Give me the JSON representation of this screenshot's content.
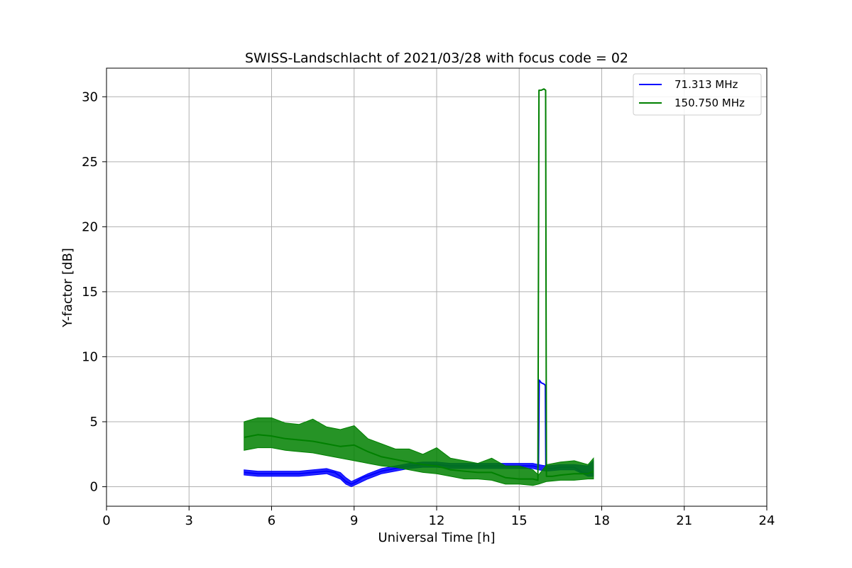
{
  "chart_data": {
    "type": "line",
    "title": "SWISS-Landschlacht of 2021/03/28 with focus code = 02",
    "xlabel": "Universal Time [h]",
    "ylabel": "Y-factor [dB]",
    "xlim": [
      0,
      24
    ],
    "ylim": [
      -1.5,
      32.2
    ],
    "xticks": [
      0,
      3,
      6,
      9,
      12,
      15,
      18,
      21,
      24
    ],
    "xtick_labels": [
      "0",
      "3",
      "6",
      "9",
      "12",
      "15",
      "18",
      "21",
      "24"
    ],
    "yticks": [
      0,
      5,
      10,
      15,
      20,
      25,
      30
    ],
    "ytick_labels": [
      "0",
      "5",
      "10",
      "15",
      "20",
      "25",
      "30"
    ],
    "grid": true,
    "legend_position": "top-right",
    "series": [
      {
        "name": "71.313 MHz",
        "color": "#0000ff",
        "points": [
          [
            5.0,
            1.1
          ],
          [
            5.5,
            1.0
          ],
          [
            6.0,
            1.0
          ],
          [
            6.5,
            1.0
          ],
          [
            7.0,
            1.0
          ],
          [
            7.5,
            1.1
          ],
          [
            8.0,
            1.2
          ],
          [
            8.3,
            1.1
          ],
          [
            8.5,
            0.8
          ],
          [
            8.7,
            0.4
          ],
          [
            8.9,
            0.2
          ],
          [
            9.1,
            0.4
          ],
          [
            9.3,
            0.7
          ],
          [
            9.6,
            0.9
          ],
          [
            10.0,
            1.2
          ],
          [
            10.5,
            1.4
          ],
          [
            11.0,
            1.6
          ],
          [
            11.5,
            1.7
          ],
          [
            12.0,
            1.7
          ],
          [
            12.5,
            1.6
          ],
          [
            13.0,
            1.6
          ],
          [
            13.5,
            1.6
          ],
          [
            14.0,
            1.6
          ],
          [
            14.5,
            1.6
          ],
          [
            15.0,
            1.6
          ],
          [
            15.5,
            1.6
          ],
          [
            15.7,
            1.5
          ],
          [
            15.73,
            8.2
          ],
          [
            15.8,
            8.0
          ],
          [
            15.9,
            7.9
          ],
          [
            15.95,
            7.8
          ],
          [
            15.97,
            1.4
          ],
          [
            16.2,
            1.4
          ],
          [
            16.5,
            1.5
          ],
          [
            17.0,
            1.5
          ],
          [
            17.3,
            1.1
          ],
          [
            17.7,
            1.0
          ]
        ],
        "envelope": {
          "x": [
            5.0,
            5.5,
            6.0,
            6.5,
            7.0,
            7.5,
            8.0,
            8.5,
            8.7,
            8.9,
            9.1,
            9.5,
            10.0,
            10.5,
            11.0,
            11.5,
            12.0,
            12.5,
            13.0,
            13.5,
            14.0,
            14.5,
            15.0,
            15.5,
            15.7,
            16.0,
            16.5,
            17.0,
            17.5,
            17.7
          ],
          "upper": [
            1.3,
            1.2,
            1.2,
            1.2,
            1.2,
            1.3,
            1.4,
            1.1,
            0.7,
            0.4,
            0.6,
            1.0,
            1.4,
            1.6,
            1.8,
            1.9,
            1.9,
            1.8,
            1.8,
            1.8,
            1.8,
            1.8,
            1.8,
            1.8,
            1.7,
            1.6,
            1.7,
            1.7,
            1.6,
            2.0
          ],
          "lower": [
            0.9,
            0.8,
            0.8,
            0.8,
            0.8,
            0.9,
            1.0,
            0.6,
            0.2,
            0.0,
            0.2,
            0.6,
            1.0,
            1.2,
            1.4,
            1.5,
            1.5,
            1.4,
            1.4,
            1.4,
            1.4,
            1.4,
            1.4,
            1.4,
            1.3,
            1.2,
            1.3,
            1.3,
            0.8,
            0.8
          ]
        }
      },
      {
        "name": "150.750 MHz",
        "color": "#008000",
        "points": [
          [
            5.0,
            3.8
          ],
          [
            5.5,
            4.0
          ],
          [
            6.0,
            3.9
          ],
          [
            6.5,
            3.7
          ],
          [
            7.0,
            3.6
          ],
          [
            7.5,
            3.5
          ],
          [
            8.0,
            3.3
          ],
          [
            8.5,
            3.1
          ],
          [
            9.0,
            3.2
          ],
          [
            9.5,
            2.7
          ],
          [
            10.0,
            2.3
          ],
          [
            10.5,
            2.1
          ],
          [
            11.0,
            1.9
          ],
          [
            11.5,
            1.7
          ],
          [
            12.0,
            1.6
          ],
          [
            12.5,
            1.3
          ],
          [
            13.0,
            1.2
          ],
          [
            13.5,
            1.1
          ],
          [
            14.0,
            1.1
          ],
          [
            14.5,
            0.7
          ],
          [
            15.0,
            0.6
          ],
          [
            15.5,
            0.6
          ],
          [
            15.68,
            0.5
          ],
          [
            15.72,
            30.5
          ],
          [
            15.8,
            30.5
          ],
          [
            15.9,
            30.6
          ],
          [
            15.96,
            30.5
          ],
          [
            15.99,
            0.8
          ],
          [
            16.2,
            0.8
          ],
          [
            16.5,
            0.9
          ],
          [
            17.0,
            1.0
          ],
          [
            17.5,
            1.0
          ],
          [
            17.7,
            1.2
          ]
        ],
        "envelope": {
          "x": [
            5.0,
            5.5,
            6.0,
            6.5,
            7.0,
            7.5,
            8.0,
            8.5,
            9.0,
            9.5,
            10.0,
            10.5,
            11.0,
            11.5,
            12.0,
            12.5,
            13.0,
            13.5,
            14.0,
            14.5,
            15.0,
            15.5,
            15.7,
            16.0,
            16.5,
            17.0,
            17.5,
            17.7
          ],
          "upper": [
            5.0,
            5.3,
            5.3,
            4.9,
            4.8,
            5.2,
            4.6,
            4.4,
            4.7,
            3.7,
            3.3,
            2.9,
            2.9,
            2.5,
            3.0,
            2.2,
            2.0,
            1.8,
            2.2,
            1.6,
            1.6,
            1.3,
            0.9,
            1.7,
            1.9,
            2.0,
            1.7,
            2.2
          ],
          "lower": [
            2.8,
            3.0,
            3.0,
            2.8,
            2.7,
            2.6,
            2.4,
            2.2,
            2.0,
            1.8,
            1.6,
            1.5,
            1.3,
            1.1,
            1.0,
            0.8,
            0.6,
            0.6,
            0.5,
            0.2,
            0.2,
            0.1,
            0.2,
            0.4,
            0.5,
            0.5,
            0.6,
            0.6
          ]
        }
      }
    ]
  }
}
